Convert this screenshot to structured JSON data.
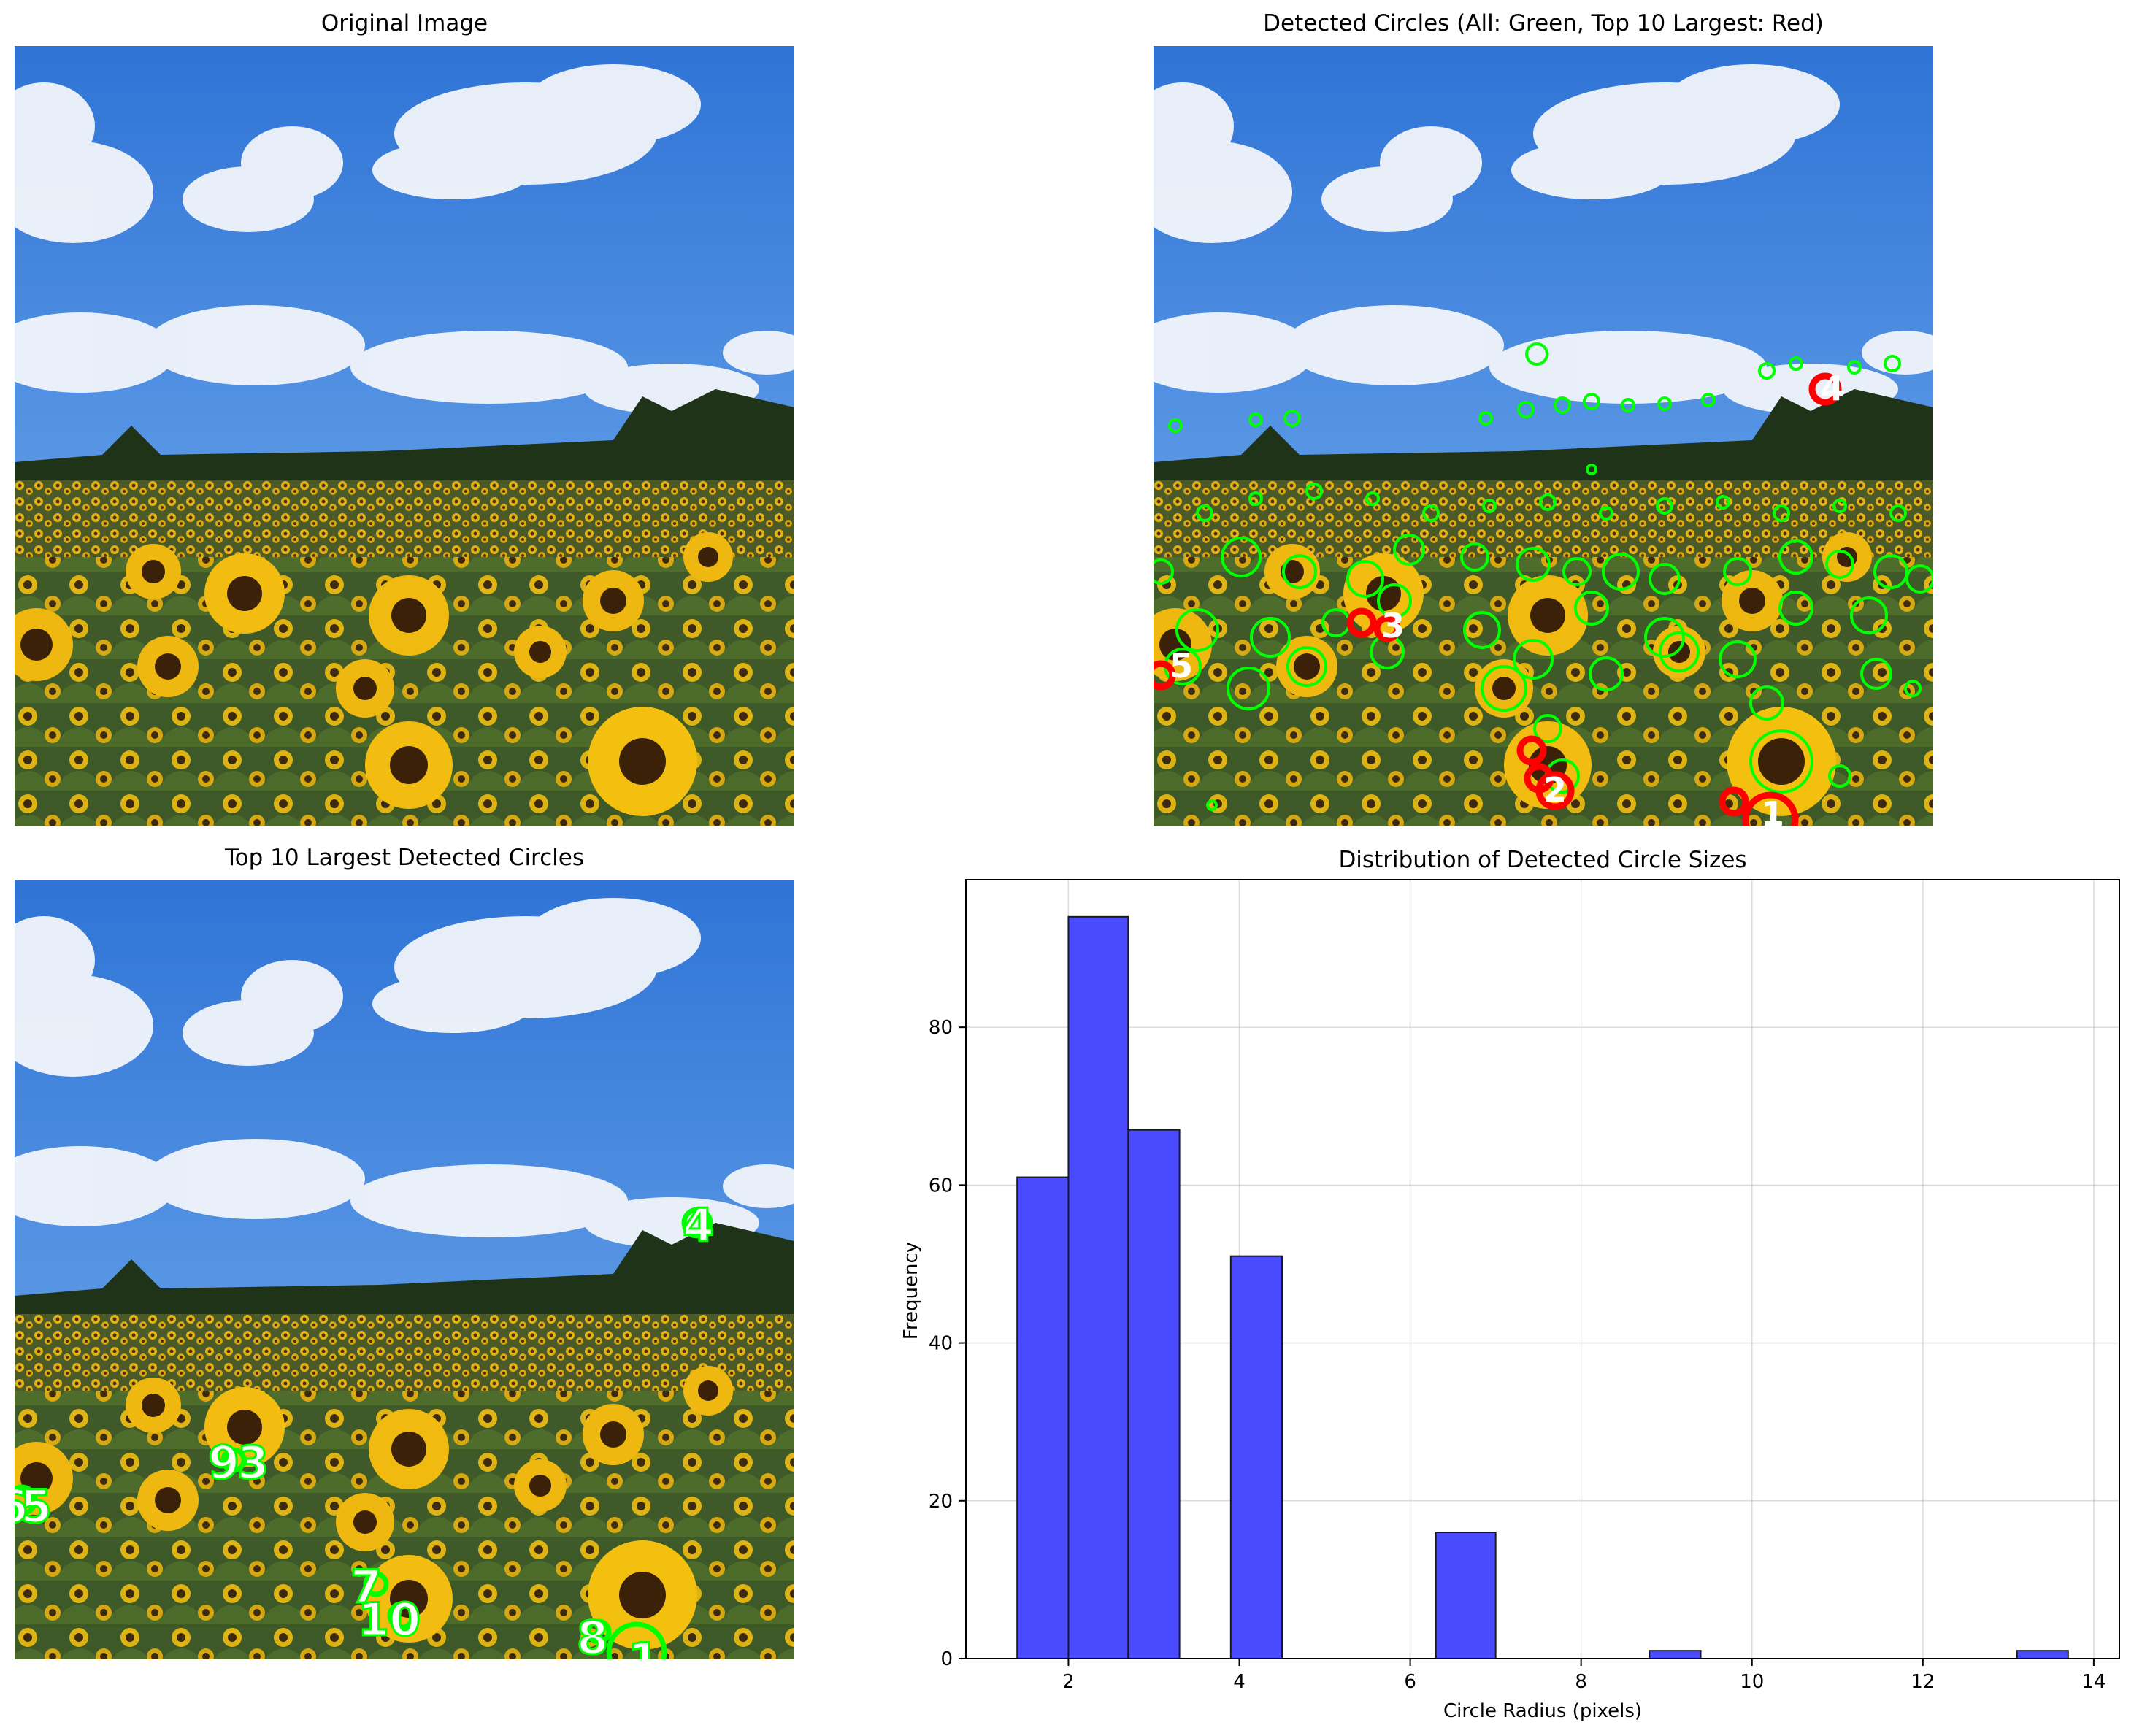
{
  "panels": {
    "original": {
      "title": "Original Image"
    },
    "detected": {
      "title": "Detected Circles (All: Green, Top 10 Largest: Red)"
    },
    "top10": {
      "title": "Top 10 Largest Detected Circles"
    }
  },
  "colors": {
    "all_circles": "#00ff00",
    "top_circles": "#ff0000",
    "labels": "#ffffff",
    "bars": "#4a4aff",
    "bar_edge": "#1a1a1a"
  },
  "top_labels": [
    "1",
    "2",
    "3",
    "4",
    "5",
    "6",
    "7",
    "8",
    "9",
    "10"
  ],
  "chart_data": {
    "type": "bar",
    "title": "Distribution of Detected Circle Sizes",
    "xlabel": "Circle Radius (pixels)",
    "ylabel": "Frequency",
    "bins": [
      {
        "x0": 1.4,
        "x1": 2.0,
        "value": 61
      },
      {
        "x0": 2.0,
        "x1": 2.7,
        "value": 94
      },
      {
        "x0": 2.7,
        "x1": 3.3,
        "value": 67
      },
      {
        "x0": 3.3,
        "x1": 3.9,
        "value": 0
      },
      {
        "x0": 3.9,
        "x1": 4.5,
        "value": 51
      },
      {
        "x0": 4.5,
        "x1": 5.1,
        "value": 0
      },
      {
        "x0": 5.1,
        "x1": 5.7,
        "value": 0
      },
      {
        "x0": 5.7,
        "x1": 6.3,
        "value": 0
      },
      {
        "x0": 6.3,
        "x1": 7.0,
        "value": 16
      },
      {
        "x0": 7.0,
        "x1": 7.6,
        "value": 0
      },
      {
        "x0": 7.6,
        "x1": 8.2,
        "value": 0
      },
      {
        "x0": 8.2,
        "x1": 8.8,
        "value": 0
      },
      {
        "x0": 8.8,
        "x1": 9.4,
        "value": 1
      },
      {
        "x0": 9.4,
        "x1": 10.0,
        "value": 0
      },
      {
        "x0": 10.0,
        "x1": 10.6,
        "value": 0
      },
      {
        "x0": 10.6,
        "x1": 11.3,
        "value": 0
      },
      {
        "x0": 11.3,
        "x1": 11.9,
        "value": 0
      },
      {
        "x0": 11.9,
        "x1": 12.5,
        "value": 0
      },
      {
        "x0": 12.5,
        "x1": 13.1,
        "value": 0
      },
      {
        "x0": 13.1,
        "x1": 13.7,
        "value": 1
      }
    ],
    "xlim": [
      0.8,
      14.3
    ],
    "ylim": [
      0,
      98.7
    ],
    "xticks": [
      2,
      4,
      6,
      8,
      10,
      12,
      14
    ],
    "yticks": [
      0,
      20,
      40,
      60,
      80
    ],
    "grid": true
  }
}
